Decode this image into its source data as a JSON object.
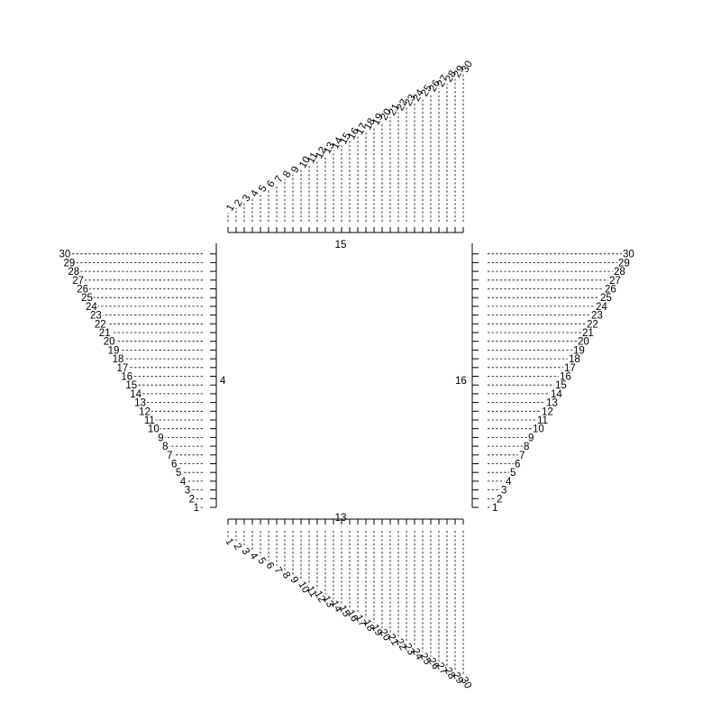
{
  "axis_labels": {
    "top": "15",
    "bottom": "13",
    "left": "4",
    "right": "16"
  },
  "pin_labels": [
    "1",
    "2",
    "3",
    "4",
    "5",
    "6",
    "7",
    "8",
    "9",
    "10",
    "11",
    "12",
    "13",
    "14",
    "15",
    "16",
    "17",
    "18",
    "19",
    "20",
    "21",
    "22",
    "23",
    "24",
    "25",
    "26",
    "27",
    "28",
    "29",
    "30"
  ],
  "sides": [
    "top",
    "bottom",
    "left",
    "right"
  ]
}
